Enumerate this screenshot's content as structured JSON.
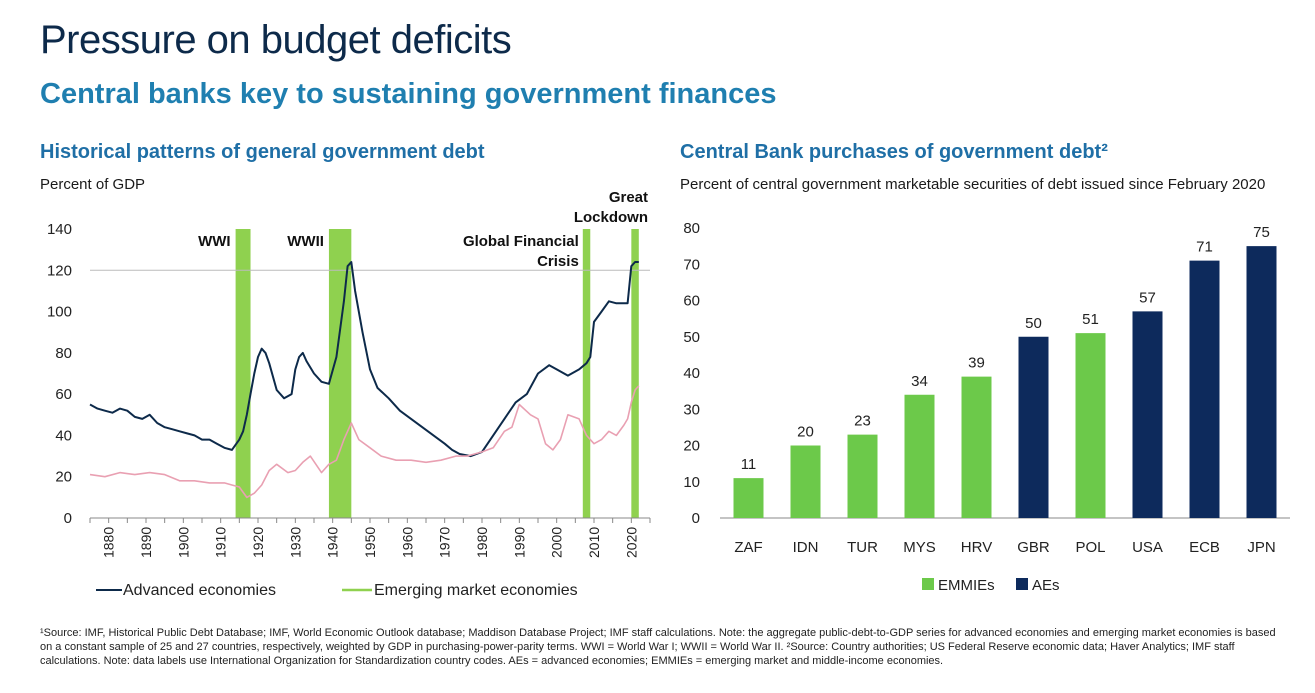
{
  "header": {
    "title": "Pressure on budget deficits",
    "subtitle": "Central banks key to sustaining government finances"
  },
  "left": {
    "title": "Historical patterns of general government debt",
    "subtitle": "Percent of GDP"
  },
  "right": {
    "title": "Central Bank purchases of government debt²",
    "subtitle": "Percent of central government marketable securities of debt issued since February 2020"
  },
  "footnote": "¹Source: IMF, Historical Public Debt Database; IMF, World Economic Outlook database; Maddison Database Project; IMF staff calculations. Note: the aggregate public-debt-to-GDP series for advanced economies and emerging market economies is based on a constant sample of 25 and 27 countries, respectively, weighted by GDP in purchasing-power-parity terms. WWI = World War I; WWII = World War II. ²Source: Country authorities; US Federal Reserve economic data; Haver Analytics; IMF staff calculations. Note: data labels use International Organization for Standardization country codes. AEs = advanced economies; EMMIEs = emerging market and middle-income economies.",
  "colors": {
    "advanced": "#0d2a4a",
    "emerging": "#e9a0b2",
    "shade": "#8fd14f",
    "emmie_bar": "#6cc94a",
    "ae_bar": "#0d2a5c"
  },
  "chart_data": [
    {
      "type": "line",
      "xlim": [
        1875,
        2025
      ],
      "ylim": [
        0,
        140
      ],
      "yticks": [
        0,
        20,
        40,
        60,
        80,
        100,
        120,
        140
      ],
      "xticks": [
        1880,
        1890,
        1900,
        1910,
        1920,
        1930,
        1940,
        1950,
        1960,
        1970,
        1980,
        1990,
        2000,
        2010,
        2020
      ],
      "grid": "horizontal-top",
      "legend": "bottom",
      "shaded_periods": [
        {
          "label": "WWI",
          "start": 1914,
          "end": 1918
        },
        {
          "label": "WWII",
          "start": 1939,
          "end": 1945
        },
        {
          "label": "Global Financial Crisis",
          "start": 2007,
          "end": 2009
        },
        {
          "label": "Great Lockdown",
          "start": 2020,
          "end": 2022
        }
      ],
      "series": [
        {
          "name": "Advanced economies",
          "x": [
            1875,
            1877,
            1879,
            1881,
            1883,
            1885,
            1887,
            1889,
            1891,
            1893,
            1895,
            1897,
            1899,
            1901,
            1903,
            1905,
            1907,
            1909,
            1911,
            1913,
            1915,
            1916,
            1917,
            1918,
            1919,
            1920,
            1921,
            1922,
            1923,
            1925,
            1927,
            1929,
            1930,
            1931,
            1932,
            1933,
            1935,
            1937,
            1939,
            1941,
            1943,
            1944,
            1945,
            1946,
            1948,
            1950,
            1952,
            1955,
            1958,
            1961,
            1964,
            1967,
            1970,
            1972,
            1974,
            1977,
            1980,
            1983,
            1986,
            1989,
            1992,
            1995,
            1998,
            2000,
            2003,
            2006,
            2008,
            2009,
            2010,
            2012,
            2014,
            2016,
            2018,
            2019,
            2020,
            2021,
            2022
          ],
          "y": [
            55,
            53,
            52,
            51,
            53,
            52,
            49,
            48,
            50,
            46,
            44,
            43,
            42,
            41,
            40,
            38,
            38,
            36,
            34,
            33,
            38,
            42,
            50,
            60,
            70,
            78,
            82,
            80,
            75,
            62,
            58,
            60,
            72,
            78,
            80,
            76,
            70,
            66,
            65,
            78,
            105,
            122,
            124,
            110,
            90,
            72,
            63,
            58,
            52,
            48,
            44,
            40,
            36,
            33,
            31,
            30,
            32,
            40,
            48,
            56,
            60,
            70,
            74,
            72,
            69,
            72,
            75,
            78,
            95,
            100,
            105,
            104,
            104,
            104,
            122,
            124,
            124
          ]
        },
        {
          "name": "Emerging market economies",
          "x": [
            1875,
            1879,
            1883,
            1887,
            1891,
            1895,
            1899,
            1903,
            1907,
            1911,
            1913,
            1915,
            1917,
            1919,
            1921,
            1923,
            1925,
            1928,
            1930,
            1932,
            1934,
            1937,
            1939,
            1941,
            1943,
            1945,
            1947,
            1950,
            1953,
            1957,
            1961,
            1965,
            1969,
            1973,
            1976,
            1980,
            1983,
            1986,
            1988,
            1990,
            1993,
            1995,
            1997,
            1999,
            2001,
            2003,
            2006,
            2008,
            2010,
            2012,
            2014,
            2016,
            2018,
            2019,
            2020,
            2021,
            2022
          ],
          "y": [
            21,
            20,
            22,
            21,
            22,
            21,
            18,
            18,
            17,
            17,
            16,
            15,
            10,
            12,
            16,
            23,
            26,
            22,
            23,
            27,
            30,
            22,
            26,
            28,
            38,
            46,
            38,
            34,
            30,
            28,
            28,
            27,
            28,
            30,
            30,
            32,
            34,
            42,
            44,
            55,
            50,
            48,
            36,
            33,
            38,
            50,
            48,
            40,
            36,
            38,
            42,
            40,
            45,
            48,
            56,
            62,
            64
          ]
        }
      ]
    },
    {
      "type": "bar",
      "categories": [
        "ZAF",
        "IDN",
        "TUR",
        "MYS",
        "HRV",
        "GBR",
        "POL",
        "USA",
        "ECB",
        "JPN"
      ],
      "values": [
        11,
        20,
        23,
        34,
        39,
        50,
        51,
        57,
        71,
        75
      ],
      "groups": [
        "EMMIEs",
        "EMMIEs",
        "EMMIEs",
        "EMMIEs",
        "EMMIEs",
        "AEs",
        "EMMIEs",
        "AEs",
        "AEs",
        "AEs"
      ],
      "ylim": [
        0,
        80
      ],
      "yticks": [
        0,
        10,
        20,
        30,
        40,
        50,
        60,
        70,
        80
      ],
      "legend": "bottom",
      "series_names": [
        "EMMIEs",
        "AEs"
      ]
    }
  ]
}
